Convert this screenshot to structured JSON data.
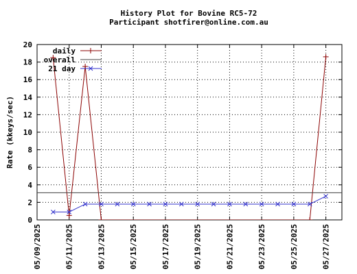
{
  "chart_data": {
    "type": "line",
    "title": "History Plot for Bovine RC5-72",
    "subtitle": "Participant shotfirer@online.com.au",
    "xlabel": "",
    "ylabel": "Rate (kkeys/sec)",
    "ylim": [
      0,
      20
    ],
    "yticks": [
      "0",
      "2",
      "4",
      "6",
      "8",
      "10",
      "12",
      "14",
      "16",
      "18",
      "20"
    ],
    "xlim": [
      "2025-05-09",
      "2025-05-28"
    ],
    "xticks": [
      "05/09/2025",
      "05/11/2025",
      "05/13/2025",
      "05/15/2025",
      "05/17/2025",
      "05/19/2025",
      "05/21/2025",
      "05/23/2025",
      "05/25/2025",
      "05/27/2025"
    ],
    "grid": true,
    "legend_position": "top-left",
    "series": [
      {
        "name": "daily",
        "color": "#8b0000",
        "marker": "plus",
        "points": [
          {
            "x": "2025-05-10",
            "y": 18.5
          },
          {
            "x": "2025-05-11",
            "y": 0.5
          },
          {
            "x": "2025-05-12",
            "y": 17.5
          },
          {
            "x": "2025-05-13",
            "y": 0
          },
          {
            "x": "2025-05-26",
            "y": 0
          },
          {
            "x": "2025-05-27",
            "y": 18.6
          }
        ]
      },
      {
        "name": "overall",
        "color": "#404040",
        "marker": "none",
        "points": [
          {
            "x": "2025-05-09",
            "y": 3.1
          },
          {
            "x": "2025-05-28",
            "y": 3.1
          }
        ]
      },
      {
        "name": "21 day",
        "color": "#3333cc",
        "marker": "x",
        "points": [
          {
            "x": "2025-05-10",
            "y": 0.9
          },
          {
            "x": "2025-05-11",
            "y": 0.9
          },
          {
            "x": "2025-05-12",
            "y": 1.8
          },
          {
            "x": "2025-05-13",
            "y": 1.8
          },
          {
            "x": "2025-05-14",
            "y": 1.8
          },
          {
            "x": "2025-05-15",
            "y": 1.8
          },
          {
            "x": "2025-05-16",
            "y": 1.8
          },
          {
            "x": "2025-05-17",
            "y": 1.8
          },
          {
            "x": "2025-05-18",
            "y": 1.8
          },
          {
            "x": "2025-05-19",
            "y": 1.8
          },
          {
            "x": "2025-05-20",
            "y": 1.8
          },
          {
            "x": "2025-05-21",
            "y": 1.8
          },
          {
            "x": "2025-05-22",
            "y": 1.8
          },
          {
            "x": "2025-05-23",
            "y": 1.8
          },
          {
            "x": "2025-05-24",
            "y": 1.8
          },
          {
            "x": "2025-05-25",
            "y": 1.8
          },
          {
            "x": "2025-05-26",
            "y": 1.8
          },
          {
            "x": "2025-05-27",
            "y": 2.7
          }
        ]
      }
    ]
  }
}
